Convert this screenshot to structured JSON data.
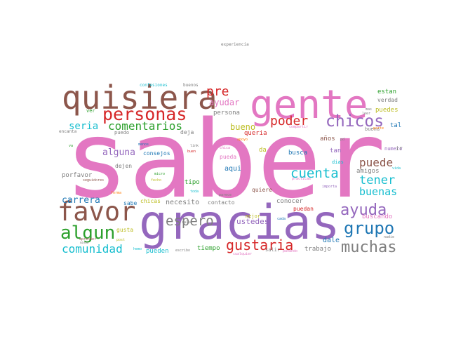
{
  "chart_data": {
    "type": "wordcloud",
    "title": "",
    "words": [
      {
        "text": "saber",
        "color": "#e377c2"
      },
      {
        "text": "gracias",
        "color": "#9467bd"
      },
      {
        "text": "gente",
        "color": "#e377c2"
      },
      {
        "text": "quisiera",
        "color": "#8c564b"
      },
      {
        "text": "personas",
        "color": "#d62728"
      },
      {
        "text": "favor",
        "color": "#8c564b"
      },
      {
        "text": "algun",
        "color": "#2ca02c"
      },
      {
        "text": "chicos",
        "color": "#9467bd"
      },
      {
        "text": "ayuda",
        "color": "#9467bd"
      },
      {
        "text": "grupo",
        "color": "#1f77b4"
      },
      {
        "text": "muchas",
        "color": "#7f7f7f"
      },
      {
        "text": "gustaria",
        "color": "#d62728"
      },
      {
        "text": "espero",
        "color": "#7f7f7f"
      },
      {
        "text": "cuenta",
        "color": "#17becf"
      },
      {
        "text": "poder",
        "color": "#d62728"
      },
      {
        "text": "pre",
        "color": "#d62728"
      },
      {
        "text": "comentarios",
        "color": "#2ca02c"
      },
      {
        "text": "comunidad",
        "color": "#17becf"
      },
      {
        "text": "tener",
        "color": "#17becf"
      },
      {
        "text": "puede",
        "color": "#8c564b"
      },
      {
        "text": "buenas",
        "color": "#17becf"
      },
      {
        "text": "seria",
        "color": "#17becf"
      },
      {
        "text": "alguna",
        "color": "#9467bd"
      },
      {
        "text": "bueno",
        "color": "#bcbd22"
      },
      {
        "text": "carrera",
        "color": "#1f77b4"
      },
      {
        "text": "ayudar",
        "color": "#e377c2"
      },
      {
        "text": "necesito",
        "color": "#7f7f7f"
      },
      {
        "text": "ustedes",
        "color": "#9467bd"
      },
      {
        "text": "aqui",
        "color": "#1f77b4"
      },
      {
        "text": "puedes",
        "color": "#bcbd22"
      },
      {
        "text": "estan",
        "color": "#2ca02c"
      },
      {
        "text": "persona",
        "color": "#7f7f7f"
      },
      {
        "text": "dale",
        "color": "#1f77b4"
      },
      {
        "text": "verdad",
        "color": "#7f7f7f"
      },
      {
        "text": "conocer",
        "color": "#7f7f7f"
      },
      {
        "text": "quiere",
        "color": "#8c564b"
      },
      {
        "text": "busca",
        "color": "#1f77b4"
      },
      {
        "text": "tan",
        "color": "#9467bd"
      },
      {
        "text": "porfavor",
        "color": "#7f7f7f"
      },
      {
        "text": "amigos",
        "color": "#7f7f7f"
      },
      {
        "text": "tipo",
        "color": "#2ca02c"
      },
      {
        "text": "buscando",
        "color": "#e377c2"
      },
      {
        "text": "trabajo",
        "color": "#7f7f7f"
      },
      {
        "text": "pueden",
        "color": "#17becf"
      },
      {
        "text": "pueda",
        "color": "#e377c2"
      },
      {
        "text": "dias",
        "color": "#17becf"
      },
      {
        "text": "queria",
        "color": "#d62728"
      },
      {
        "text": "deja",
        "color": "#7f7f7f"
      },
      {
        "text": "años",
        "color": "#8c564b"
      },
      {
        "text": "numero",
        "color": "#9467bd"
      },
      {
        "text": "tal",
        "color": "#1f77b4"
      },
      {
        "text": "ir",
        "color": "#7f7f7f"
      },
      {
        "text": "da",
        "color": "#bcbd22"
      },
      {
        "text": "sabe",
        "color": "#1f77b4"
      },
      {
        "text": "contacto",
        "color": "#7f7f7f"
      },
      {
        "text": "mejor",
        "color": "#bcbd22"
      },
      {
        "text": "puedan",
        "color": "#d62728"
      },
      {
        "text": "tiempo",
        "color": "#2ca02c"
      },
      {
        "text": "chicas",
        "color": "#bcbd22"
      },
      {
        "text": "gusta",
        "color": "#bcbd22"
      },
      {
        "text": "consejos",
        "color": "#1f77b4"
      },
      {
        "text": "dejen",
        "color": "#7f7f7f"
      },
      {
        "text": "puedo",
        "color": "#7f7f7f"
      },
      {
        "text": "buena",
        "color": "#7f7f7f"
      },
      {
        "text": "ver",
        "color": "#2ca02c"
      },
      {
        "text": "salir",
        "color": "#7f7f7f"
      },
      {
        "text": "encanta",
        "color": "#7f7f7f"
      },
      {
        "text": "confesiones",
        "color": "#17becf"
      },
      {
        "text": "buenos",
        "color": "#7f7f7f"
      },
      {
        "text": "experiencia",
        "color": "#7f7f7f"
      },
      {
        "text": "menos",
        "color": "#1f77b4"
      },
      {
        "text": "compartir",
        "color": "#e377c2"
      },
      {
        "text": "parte",
        "color": "#ff7f0e"
      },
      {
        "text": "micro",
        "color": "#2ca02c"
      },
      {
        "text": "fecho",
        "color": "#bcbd22"
      },
      {
        "text": "seguidores",
        "color": "#8c564b"
      },
      {
        "text": "forma",
        "color": "#ff7f0e"
      },
      {
        "text": "post",
        "color": "#bcbd22"
      },
      {
        "text": "aprender",
        "color": "#8c564b"
      },
      {
        "text": "salud",
        "color": "#7f7f7f"
      },
      {
        "text": "toda",
        "color": "#17becf"
      },
      {
        "text": "practicas",
        "color": "#e377c2"
      },
      {
        "text": "importa",
        "color": "#9467bd"
      },
      {
        "text": "cada",
        "color": "#1f77b4"
      },
      {
        "text": "nadie",
        "color": "#7f7f7f"
      },
      {
        "text": "cualquier",
        "color": "#e377c2"
      },
      {
        "text": "pasando",
        "color": "#e377c2"
      },
      {
        "text": "escribo",
        "color": "#7f7f7f"
      },
      {
        "text": "hemo",
        "color": "#17becf"
      },
      {
        "text": "parece",
        "color": "#7f7f7f"
      },
      {
        "text": "chica",
        "color": "#e377c2"
      },
      {
        "text": "buen",
        "color": "#d62728"
      },
      {
        "text": "link",
        "color": "#7f7f7f"
      },
      {
        "text": "va",
        "color": "#2ca02c"
      },
      {
        "text": "miedo",
        "color": "#7f7f7f"
      },
      {
        "text": "leer",
        "color": "#7f7f7f"
      },
      {
        "text": "vida",
        "color": "#17becf"
      },
      {
        "text": "pd",
        "color": "#7f7f7f"
      },
      {
        "text": "mas",
        "color": "#7f7f7f"
      },
      {
        "text": "apoyo",
        "color": "#ff7f0e"
      }
    ]
  }
}
